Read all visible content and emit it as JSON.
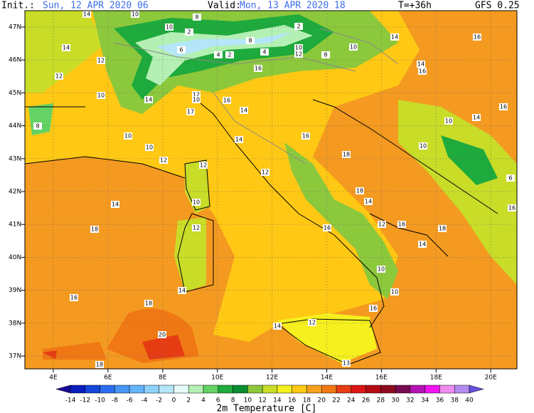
{
  "header": {
    "init_label": "Init.:",
    "init": "Sun, 12 APR 2020 06",
    "valid_label": "Valid:",
    "valid": "Mon, 13 APR 2020 18",
    "lead": "T=+36h",
    "model": "GFS 0.25"
  },
  "map": {
    "lat_labels": [
      "47N",
      "46N",
      "45N",
      "44N",
      "43N",
      "42N",
      "41N",
      "40N",
      "39N",
      "38N",
      "37N"
    ],
    "lon_labels": [
      "4E",
      "6E",
      "8E",
      "10E",
      "12E",
      "14E",
      "16E",
      "18E",
      "20E"
    ],
    "contour_labels": [
      14,
      10,
      10,
      8,
      2,
      2,
      8,
      10,
      12,
      8,
      10,
      14,
      16,
      14,
      12,
      12,
      6,
      4,
      2,
      4,
      16,
      14,
      16,
      10,
      14,
      12,
      10,
      16,
      17,
      14,
      8,
      10,
      10,
      14,
      16,
      12,
      18,
      14,
      16,
      10,
      10,
      12,
      12,
      10,
      18,
      14,
      14,
      12,
      18,
      16,
      16,
      12,
      14,
      18,
      16,
      18,
      14,
      10,
      10,
      16,
      12,
      14,
      20,
      18,
      13,
      16,
      6
    ]
  },
  "legend": {
    "title": "2m Temperature [C]",
    "ticks": [
      -14,
      -12,
      -10,
      -8,
      -6,
      -4,
      -2,
      0,
      2,
      4,
      6,
      8,
      10,
      12,
      14,
      16,
      18,
      20,
      22,
      24,
      26,
      28,
      30,
      32,
      34,
      36,
      38,
      40
    ],
    "colors": [
      "#1a0a9a",
      "#0a1ebe",
      "#1446dc",
      "#2a6ef0",
      "#4696f5",
      "#64b4fa",
      "#8cd2fa",
      "#b4e6fa",
      "#e6fafa",
      "#b4f0b4",
      "#64d264",
      "#1eaa3c",
      "#0a8c32",
      "#8cc83c",
      "#c8dc28",
      "#f5f01e",
      "#ffc814",
      "#f5a01e",
      "#f07814",
      "#e63c14",
      "#dc1414",
      "#b40a14",
      "#8c0a1e",
      "#780a50",
      "#b414b4",
      "#f014f0",
      "#f08cf0",
      "#b48cf0",
      "#6450dc"
    ]
  }
}
